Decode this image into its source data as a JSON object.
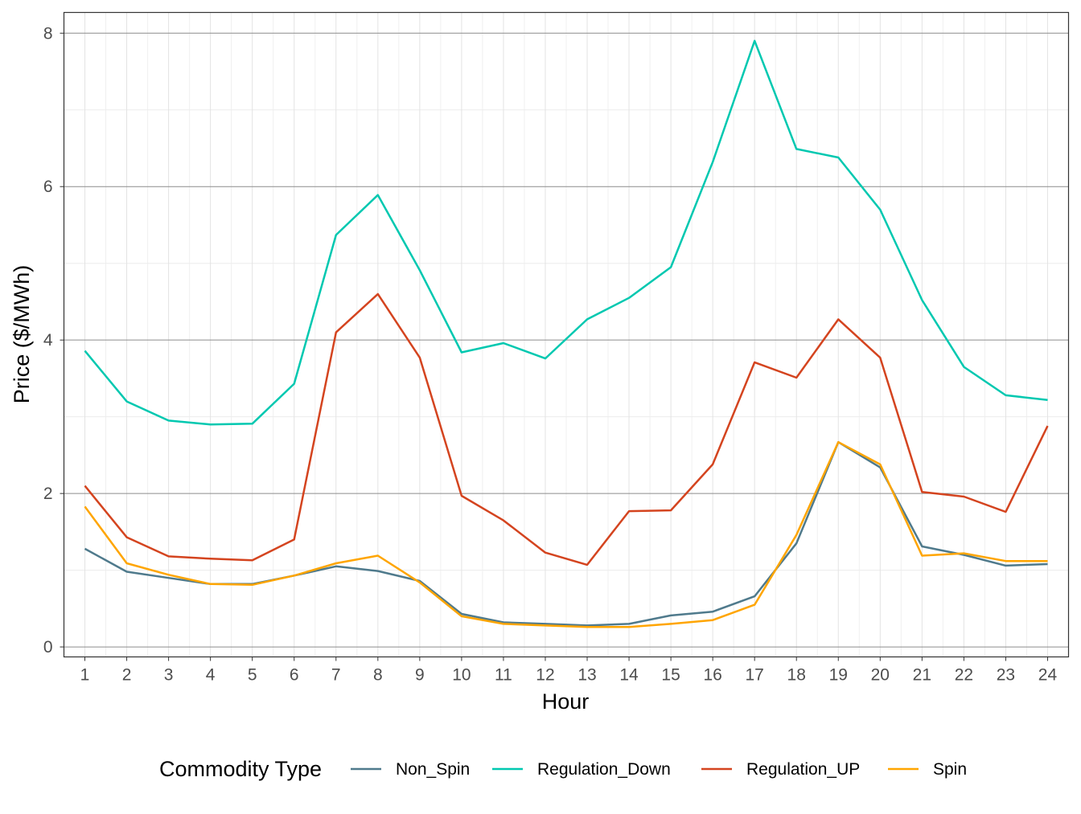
{
  "chart_data": {
    "type": "line",
    "title": "",
    "xlabel": "Hour",
    "ylabel": "Price ($/MWh)",
    "x": [
      1,
      2,
      3,
      4,
      5,
      6,
      7,
      8,
      9,
      10,
      11,
      12,
      13,
      14,
      15,
      16,
      17,
      18,
      19,
      20,
      21,
      22,
      23,
      24
    ],
    "xlim": [
      0.5,
      24.5
    ],
    "ylim": [
      -0.13,
      8.27
    ],
    "yticks": [
      0,
      2,
      4,
      6,
      8
    ],
    "grid": true,
    "legend": {
      "title": "Commodity Type",
      "position": "bottom"
    },
    "series": [
      {
        "name": "Non_Spin",
        "color": "#4f7a8c",
        "values": [
          1.28,
          0.98,
          0.9,
          0.82,
          0.82,
          0.93,
          1.05,
          0.99,
          0.86,
          0.43,
          0.32,
          0.3,
          0.28,
          0.3,
          0.41,
          0.46,
          0.66,
          1.35,
          2.67,
          2.34,
          1.31,
          1.2,
          1.06,
          1.08
        ]
      },
      {
        "name": "Regulation_Down",
        "color": "#00c8b0",
        "values": [
          3.86,
          3.2,
          2.95,
          2.9,
          2.91,
          3.43,
          5.37,
          5.89,
          4.91,
          3.84,
          3.96,
          3.76,
          4.27,
          4.55,
          4.95,
          6.32,
          7.9,
          6.49,
          6.38,
          5.7,
          4.52,
          3.65,
          3.28,
          3.22
        ]
      },
      {
        "name": "Regulation_UP",
        "color": "#d4441f",
        "values": [
          2.1,
          1.43,
          1.18,
          1.15,
          1.13,
          1.4,
          4.1,
          4.6,
          3.77,
          1.97,
          1.65,
          1.23,
          1.07,
          1.77,
          1.78,
          2.38,
          3.71,
          3.51,
          4.27,
          3.77,
          2.02,
          1.96,
          1.76,
          2.88
        ]
      },
      {
        "name": "Spin",
        "color": "#ffa500",
        "values": [
          1.83,
          1.09,
          0.94,
          0.82,
          0.81,
          0.93,
          1.09,
          1.19,
          0.84,
          0.4,
          0.3,
          0.28,
          0.26,
          0.26,
          0.3,
          0.35,
          0.55,
          1.46,
          2.67,
          2.38,
          1.19,
          1.22,
          1.12,
          1.12
        ]
      }
    ]
  }
}
